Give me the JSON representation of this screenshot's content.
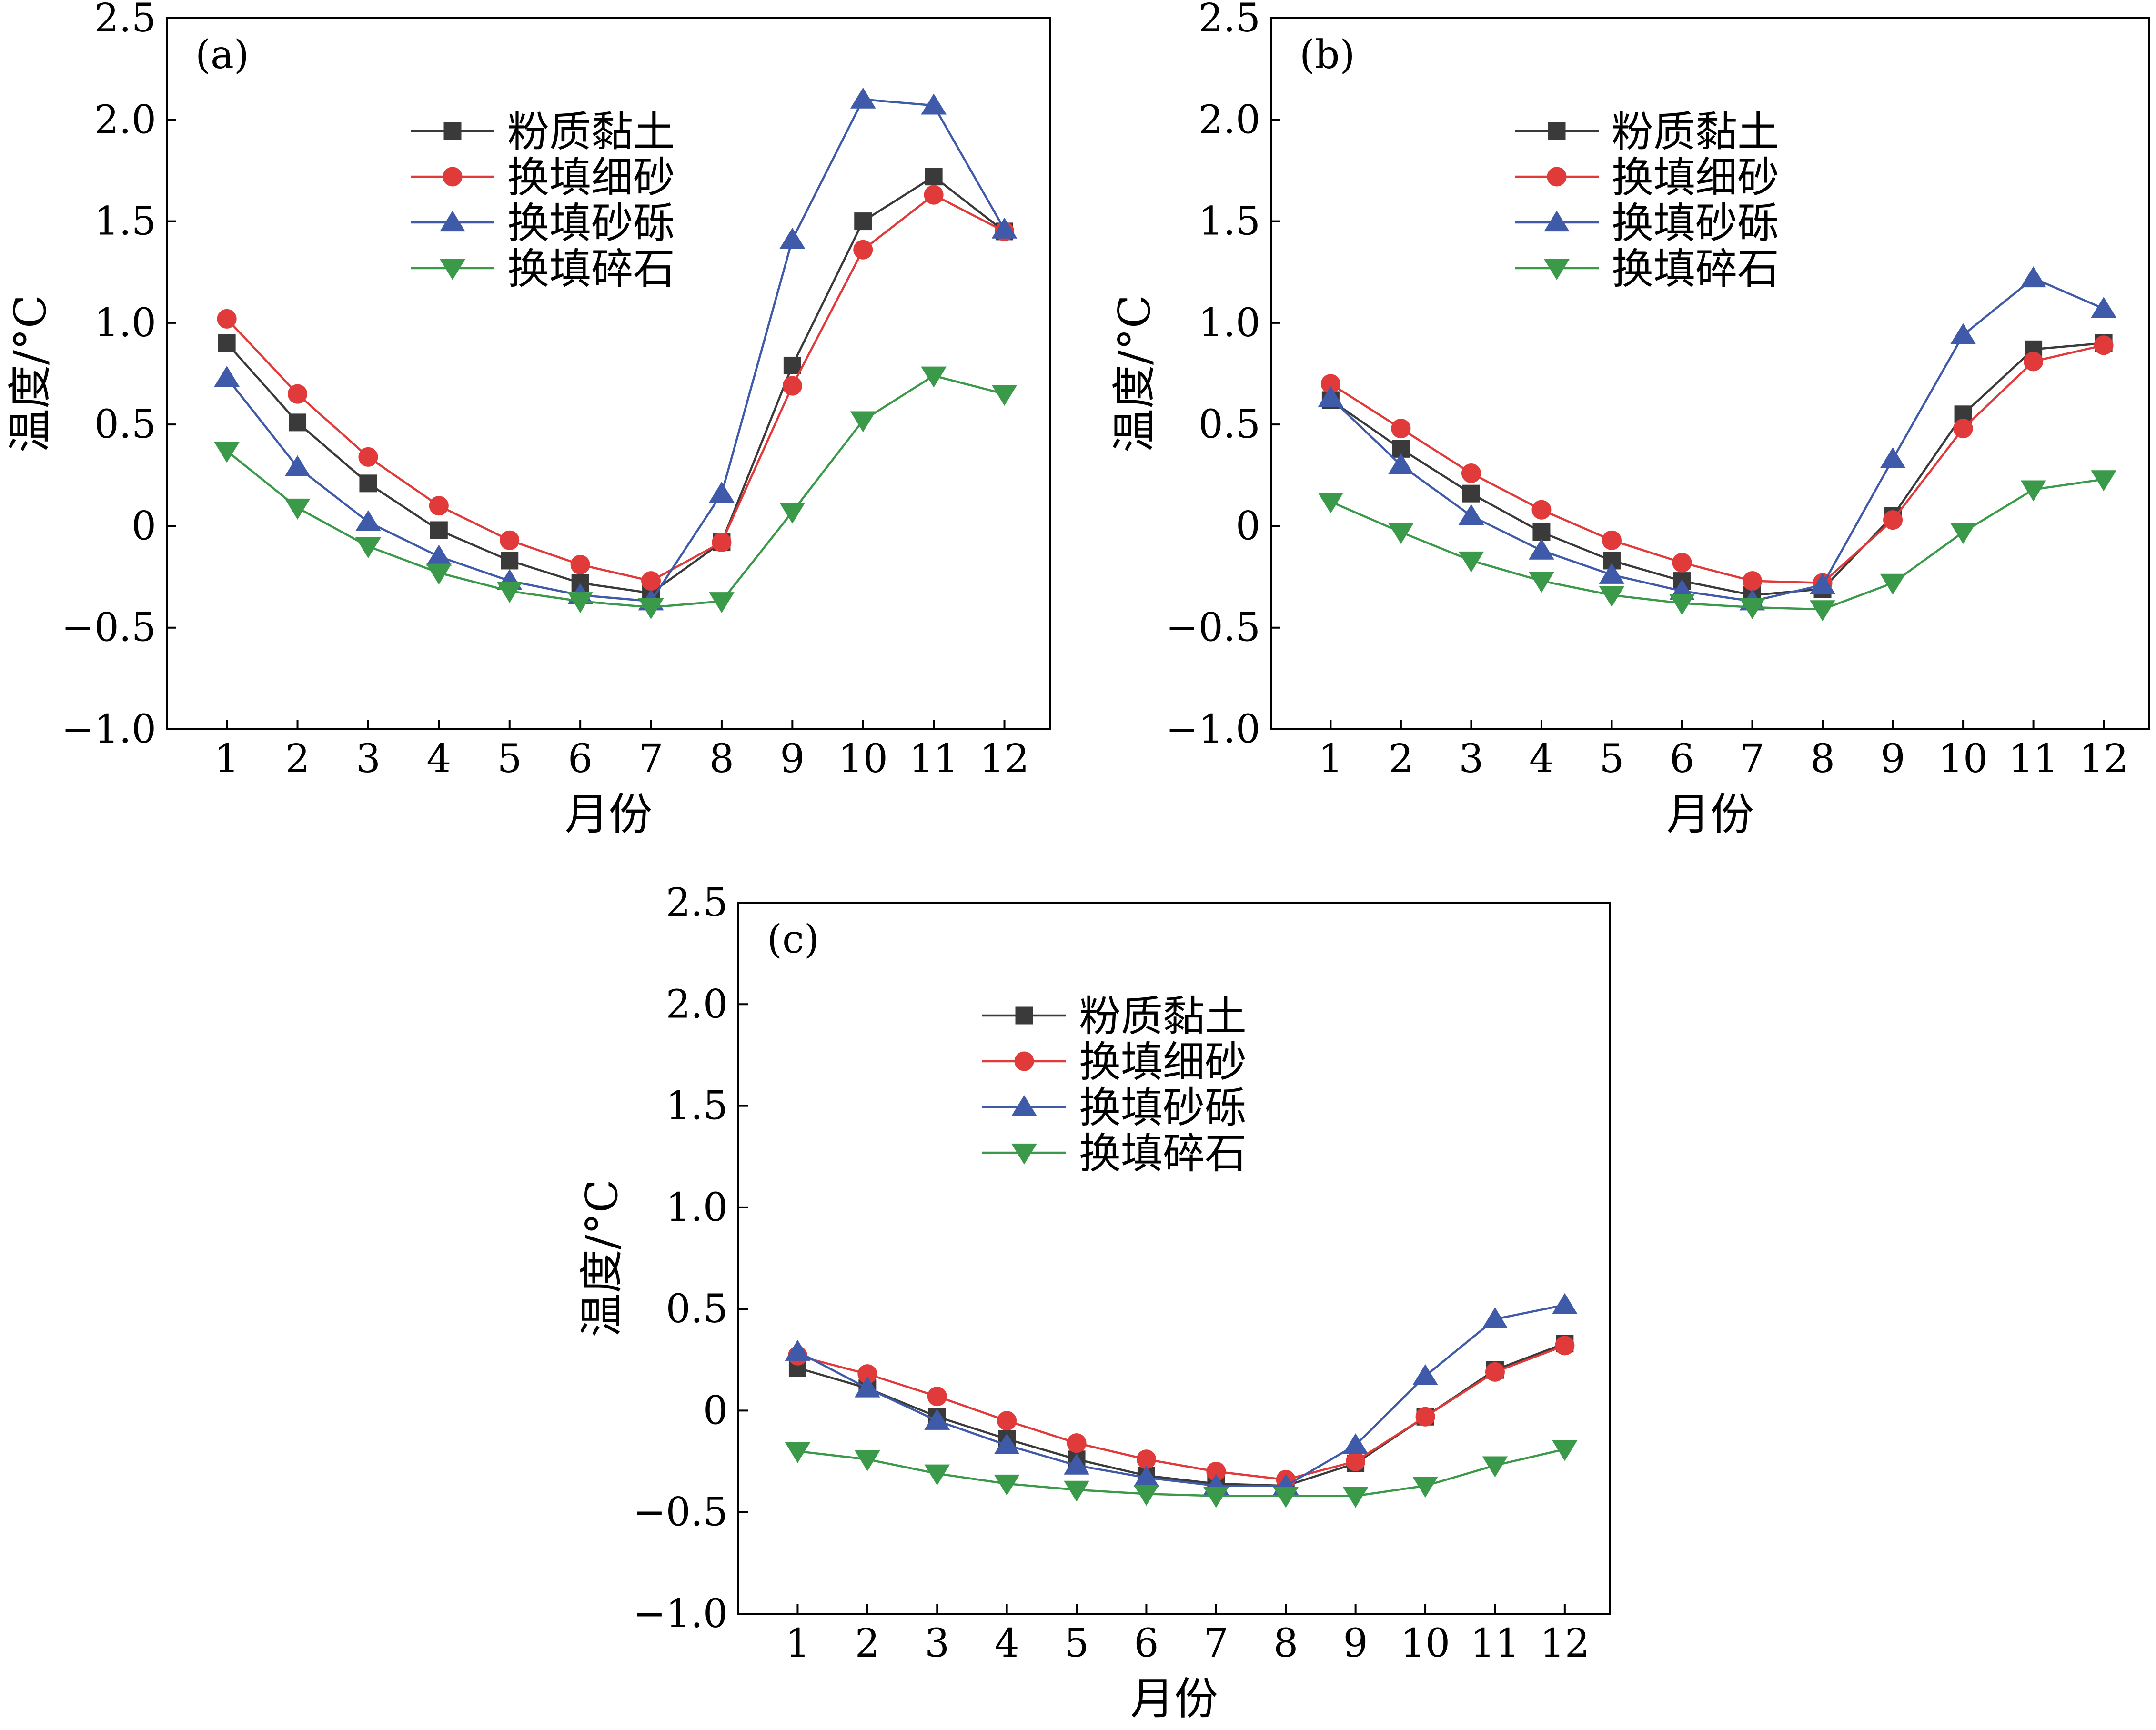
{
  "colors": {
    "粉质黏土": "#3a3a3a",
    "换填细砂": "#e03a3a",
    "换填砂砾": "#3f5aa8",
    "换填碎石": "#3a9a4a"
  },
  "markers": {
    "粉质黏土": "square",
    "换填细砂": "circle",
    "换填砂砾": "triangle-up",
    "换填碎石": "triangle-down"
  },
  "chart_data": [
    {
      "type": "line",
      "panel_label": "(a)",
      "xlabel": "月份",
      "ylabel": "温度/°C",
      "x": [
        1,
        2,
        3,
        4,
        5,
        6,
        7,
        8,
        9,
        10,
        11,
        12
      ],
      "xticks": [
        "1",
        "2",
        "3",
        "4",
        "5",
        "6",
        "7",
        "8",
        "9",
        "10",
        "11",
        "12"
      ],
      "ylim": [
        -1.0,
        2.5
      ],
      "yticks": [
        "−1.0",
        "−0.5",
        "0",
        "0.5",
        "1.0",
        "1.5",
        "2.0",
        "2.5"
      ],
      "legend_position": "top-center",
      "series": [
        {
          "name": "粉质黏土",
          "values": [
            0.9,
            0.51,
            0.21,
            -0.02,
            -0.17,
            -0.28,
            -0.33,
            -0.08,
            0.79,
            1.5,
            1.72,
            1.45
          ]
        },
        {
          "name": "换填细砂",
          "values": [
            1.02,
            0.65,
            0.34,
            0.1,
            -0.07,
            -0.19,
            -0.27,
            -0.08,
            0.69,
            1.36,
            1.63,
            1.45
          ]
        },
        {
          "name": "换填砂砾",
          "values": [
            0.73,
            0.29,
            0.02,
            -0.15,
            -0.27,
            -0.34,
            -0.37,
            0.16,
            1.41,
            2.1,
            2.07,
            1.46
          ]
        },
        {
          "name": "换填碎石",
          "values": [
            0.37,
            0.09,
            -0.1,
            -0.23,
            -0.32,
            -0.37,
            -0.4,
            -0.37,
            0.07,
            0.52,
            0.74,
            0.65
          ]
        }
      ]
    },
    {
      "type": "line",
      "panel_label": "(b)",
      "xlabel": "月份",
      "ylabel": "温度/°C",
      "x": [
        1,
        2,
        3,
        4,
        5,
        6,
        7,
        8,
        9,
        10,
        11,
        12
      ],
      "xticks": [
        "1",
        "2",
        "3",
        "4",
        "5",
        "6",
        "7",
        "8",
        "9",
        "10",
        "11",
        "12"
      ],
      "ylim": [
        -1.0,
        2.5
      ],
      "yticks": [
        "−1.0",
        "−0.5",
        "0",
        "0.5",
        "1.0",
        "1.5",
        "2.0",
        "2.5"
      ],
      "legend_position": "top-center",
      "series": [
        {
          "name": "粉质黏土",
          "values": [
            0.62,
            0.38,
            0.16,
            -0.03,
            -0.17,
            -0.27,
            -0.34,
            -0.31,
            0.05,
            0.55,
            0.87,
            0.9
          ]
        },
        {
          "name": "换填细砂",
          "values": [
            0.7,
            0.48,
            0.26,
            0.08,
            -0.07,
            -0.18,
            -0.27,
            -0.28,
            0.03,
            0.48,
            0.81,
            0.89
          ]
        },
        {
          "name": "换填砂砾",
          "values": [
            0.63,
            0.3,
            0.05,
            -0.12,
            -0.24,
            -0.32,
            -0.37,
            -0.29,
            0.33,
            0.94,
            1.22,
            1.07
          ]
        },
        {
          "name": "换填碎石",
          "values": [
            0.12,
            -0.03,
            -0.17,
            -0.27,
            -0.34,
            -0.38,
            -0.4,
            -0.41,
            -0.28,
            -0.03,
            0.18,
            0.23
          ]
        }
      ]
    },
    {
      "type": "line",
      "panel_label": "(c)",
      "xlabel": "月份",
      "ylabel": "温度/°C",
      "x": [
        1,
        2,
        3,
        4,
        5,
        6,
        7,
        8,
        9,
        10,
        11,
        12
      ],
      "xticks": [
        "1",
        "2",
        "3",
        "4",
        "5",
        "6",
        "7",
        "8",
        "9",
        "10",
        "11",
        "12"
      ],
      "ylim": [
        -1.0,
        2.5
      ],
      "yticks": [
        "−1.0",
        "−0.5",
        "0",
        "0.5",
        "1.0",
        "1.5",
        "2.0",
        "2.5"
      ],
      "legend_position": "top-center",
      "series": [
        {
          "name": "粉质黏土",
          "values": [
            0.21,
            0.11,
            -0.03,
            -0.14,
            -0.24,
            -0.32,
            -0.36,
            -0.37,
            -0.26,
            -0.03,
            0.2,
            0.33
          ]
        },
        {
          "name": "换填细砂",
          "values": [
            0.27,
            0.18,
            0.07,
            -0.05,
            -0.16,
            -0.24,
            -0.3,
            -0.34,
            -0.25,
            -0.03,
            0.19,
            0.32
          ]
        },
        {
          "name": "换填砂砾",
          "values": [
            0.29,
            0.11,
            -0.05,
            -0.17,
            -0.27,
            -0.33,
            -0.37,
            -0.37,
            -0.17,
            0.17,
            0.45,
            0.52
          ]
        },
        {
          "name": "换填碎石",
          "values": [
            -0.2,
            -0.24,
            -0.31,
            -0.36,
            -0.39,
            -0.41,
            -0.42,
            -0.42,
            -0.42,
            -0.37,
            -0.27,
            -0.19
          ]
        }
      ]
    }
  ]
}
